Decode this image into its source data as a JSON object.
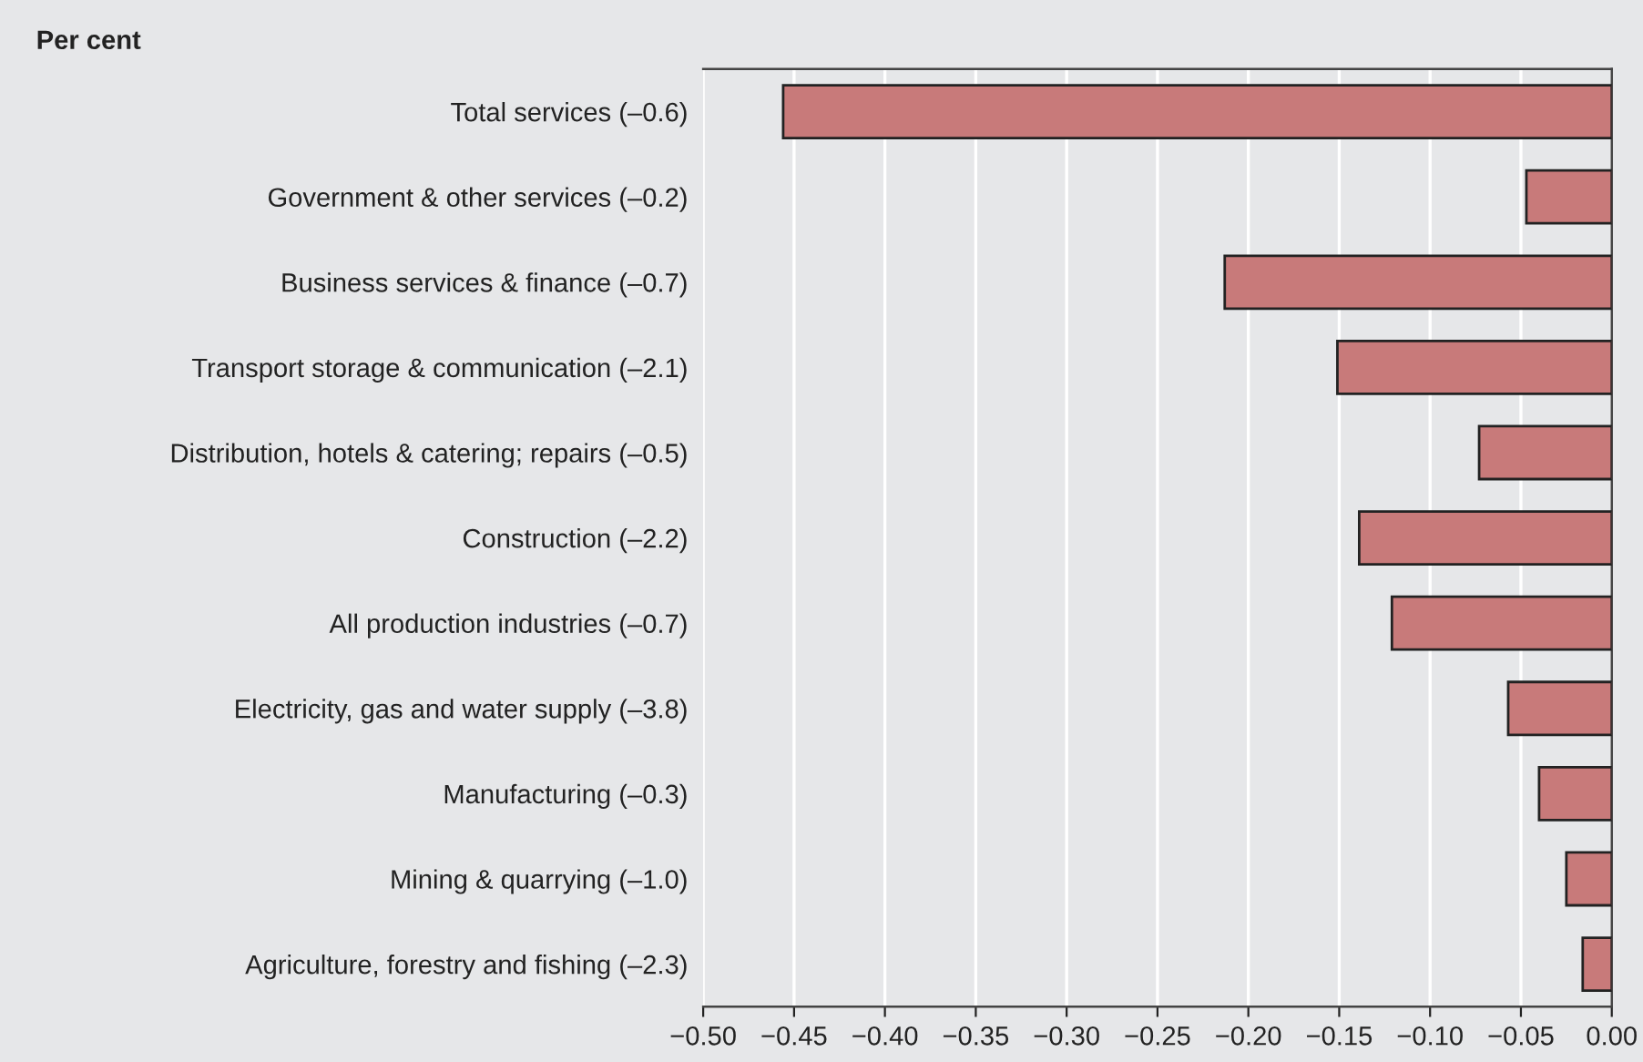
{
  "chart_data": {
    "type": "bar",
    "orientation": "horizontal",
    "title": "Per cent",
    "categories": [
      "Total services (–0.6)",
      "Government & other services (–0.2)",
      "Business services & finance (–0.7)",
      "Transport storage & communication (–2.1)",
      "Distribution, hotels & catering; repairs (–0.5)",
      "Construction (–2.2)",
      "All production industries (–0.7)",
      "Electricity, gas and water supply (–3.8)",
      "Manufacturing (–0.3)",
      "Mining & quarrying (–1.0)",
      "Agriculture, forestry and fishing (–2.3)"
    ],
    "values": [
      -0.456,
      -0.047,
      -0.213,
      -0.151,
      -0.073,
      -0.139,
      -0.121,
      -0.057,
      -0.04,
      -0.025,
      -0.016
    ],
    "color": "#c87a7a",
    "xlim": [
      -0.5,
      0
    ],
    "xticks": [
      {
        "value": -0.5,
        "label": "−0.50"
      },
      {
        "value": -0.45,
        "label": "−0.45"
      },
      {
        "value": -0.4,
        "label": "−0.40"
      },
      {
        "value": -0.35,
        "label": "−0.35"
      },
      {
        "value": -0.3,
        "label": "−0.30"
      },
      {
        "value": -0.25,
        "label": "−0.25"
      },
      {
        "value": -0.2,
        "label": "−0.20"
      },
      {
        "value": -0.15,
        "label": "−0.15"
      },
      {
        "value": -0.1,
        "label": "−0.10"
      },
      {
        "value": -0.05,
        "label": "−0.05"
      },
      {
        "value": 0,
        "label": "0.00"
      }
    ],
    "grid": "x"
  }
}
